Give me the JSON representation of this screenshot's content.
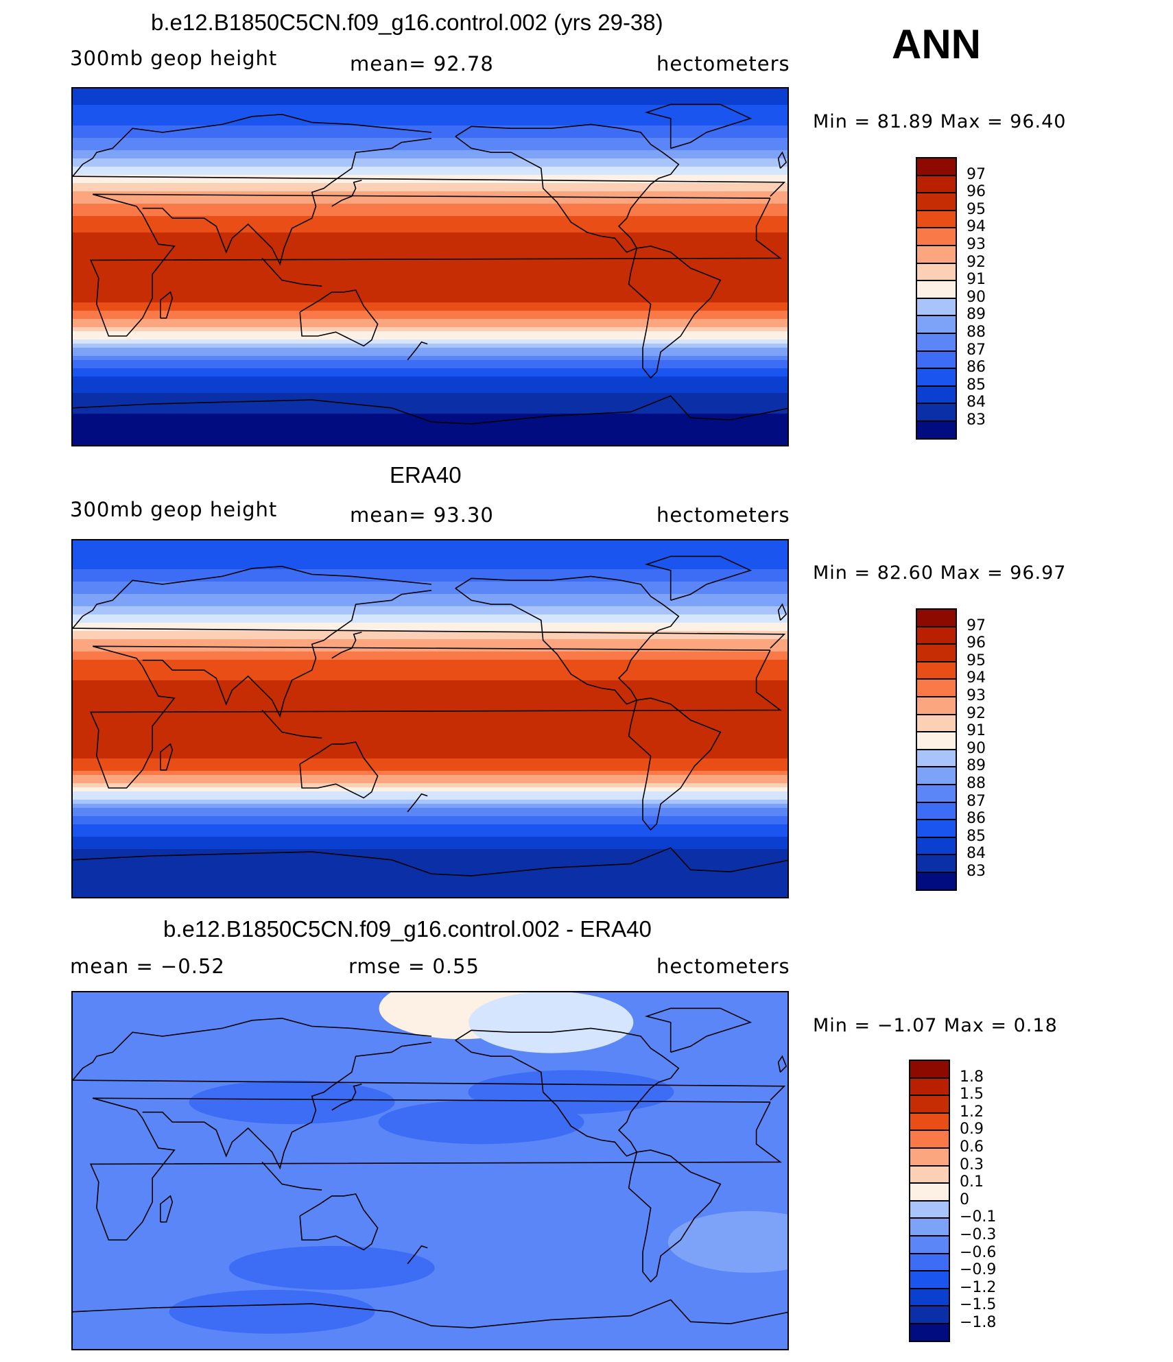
{
  "season": "ANN",
  "panels": [
    {
      "title": "b.e12.B1850C5CN.f09_g16.control.002 (yrs 29-38)",
      "left_label": "300mb  geop  height",
      "center_label": "mean=   92.78",
      "units": "hectometers",
      "minmax": "Min  =    81.89  Max  =    96.40",
      "colorbar_labels": [
        "97",
        "96",
        "95",
        "94",
        "93",
        "92",
        "91",
        "90",
        "89",
        "88",
        "87",
        "86",
        "85",
        "84",
        "83"
      ]
    },
    {
      "title": "ERA40",
      "left_label": "300mb  geop  height",
      "center_label": "mean=   93.30",
      "units": "hectometers",
      "minmax": "Min  =    82.60  Max  =    96.97",
      "colorbar_labels": [
        "97",
        "96",
        "95",
        "94",
        "93",
        "92",
        "91",
        "90",
        "89",
        "88",
        "87",
        "86",
        "85",
        "84",
        "83"
      ]
    },
    {
      "title": "b.e12.B1850C5CN.f09_g16.control.002 - ERA40",
      "left_label": "mean  =    −0.52",
      "center_label": "rmse  =     0.55",
      "units": "hectometers",
      "minmax": "Min  =   −1.07  Max  =     0.18",
      "colorbar_labels": [
        "1.8",
        "1.5",
        "1.2",
        "0.9",
        "0.6",
        "0.3",
        "0.1",
        "0",
        "−0.1",
        "−0.3",
        "−0.6",
        "−0.9",
        "−1.2",
        "−1.5",
        "−1.8"
      ]
    }
  ],
  "palette": [
    "#000c80",
    "#0a30a8",
    "#0a3fd0",
    "#1a50f0",
    "#3d6df5",
    "#5a86f7",
    "#7aa0f9",
    "#a3bffb",
    "#c8dafc",
    "#e6f0fd",
    "#fdeadb",
    "#fcc9aa",
    "#fba27a",
    "#f97a48",
    "#f05018",
    "#d83208",
    "#b82000",
    "#8c0a00"
  ],
  "chart_data": [
    {
      "type": "heatmap",
      "title": "b.e12.B1850C5CN.f09_g16.control.002 (yrs 29-38)",
      "variable": "300mb geop height",
      "units": "hectometers",
      "mean": 92.78,
      "min": 81.89,
      "max": 96.4,
      "levels": [
        83,
        84,
        85,
        86,
        87,
        88,
        89,
        90,
        91,
        92,
        93,
        94,
        95,
        96,
        97
      ],
      "zonal_profile": [
        {
          "lat": 90,
          "value": 84.5
        },
        {
          "lat": 75,
          "value": 85.5
        },
        {
          "lat": 60,
          "value": 88.0
        },
        {
          "lat": 45,
          "value": 91.5
        },
        {
          "lat": 30,
          "value": 94.5
        },
        {
          "lat": 15,
          "value": 96.3
        },
        {
          "lat": 0,
          "value": 96.4
        },
        {
          "lat": -15,
          "value": 96.2
        },
        {
          "lat": -25,
          "value": 94.5
        },
        {
          "lat": -35,
          "value": 91.0
        },
        {
          "lat": -45,
          "value": 87.5
        },
        {
          "lat": -55,
          "value": 85.0
        },
        {
          "lat": -65,
          "value": 83.5
        },
        {
          "lat": -90,
          "value": 82.0
        }
      ]
    },
    {
      "type": "heatmap",
      "title": "ERA40",
      "variable": "300mb geop height",
      "units": "hectometers",
      "mean": 93.3,
      "min": 82.6,
      "max": 96.97,
      "levels": [
        83,
        84,
        85,
        86,
        87,
        88,
        89,
        90,
        91,
        92,
        93,
        94,
        95,
        96,
        97
      ],
      "zonal_profile": [
        {
          "lat": 90,
          "value": 85.0
        },
        {
          "lat": 75,
          "value": 86.0
        },
        {
          "lat": 60,
          "value": 88.5
        },
        {
          "lat": 45,
          "value": 92.0
        },
        {
          "lat": 30,
          "value": 95.0
        },
        {
          "lat": 15,
          "value": 96.5
        },
        {
          "lat": 0,
          "value": 96.9
        },
        {
          "lat": -15,
          "value": 96.6
        },
        {
          "lat": -25,
          "value": 95.0
        },
        {
          "lat": -35,
          "value": 91.5
        },
        {
          "lat": -45,
          "value": 88.0
        },
        {
          "lat": -55,
          "value": 85.5
        },
        {
          "lat": -65,
          "value": 84.0
        },
        {
          "lat": -90,
          "value": 83.0
        }
      ]
    },
    {
      "type": "heatmap",
      "title": "b.e12.B1850C5CN.f09_g16.control.002 - ERA40",
      "variable": "300mb geop height difference",
      "units": "hectometers",
      "mean": -0.52,
      "rmse": 0.55,
      "min": -1.07,
      "max": 0.18,
      "levels": [
        -1.8,
        -1.5,
        -1.2,
        -0.9,
        -0.6,
        -0.3,
        -0.1,
        0,
        0.1,
        0.3,
        0.6,
        0.9,
        1.2,
        1.5,
        1.8
      ],
      "background_value": -0.45,
      "features": [
        {
          "lon": 195,
          "lat": 82,
          "value": 0.15
        },
        {
          "lon": 240,
          "lat": 75,
          "value": 0.05
        },
        {
          "lon": 110,
          "lat": 35,
          "value": -0.75
        },
        {
          "lon": 250,
          "lat": 40,
          "value": -0.75
        },
        {
          "lon": 205,
          "lat": 25,
          "value": -0.65
        },
        {
          "lon": 130,
          "lat": -48,
          "value": -0.8
        },
        {
          "lon": 340,
          "lat": -35,
          "value": -0.2
        },
        {
          "lon": 100,
          "lat": -70,
          "value": -0.65
        }
      ]
    }
  ]
}
